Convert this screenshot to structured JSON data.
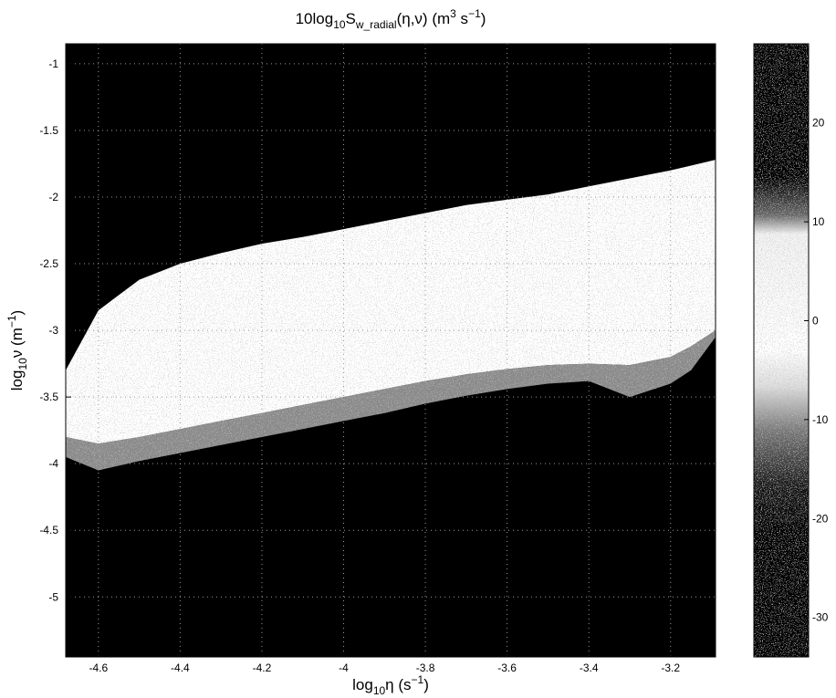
{
  "chart_data": {
    "type": "heatmap",
    "title": {
      "lead": "10log",
      "sub1": "10",
      "mid": "S",
      "sub2": "w_radial",
      "args": "(η,ν) (m",
      "sup1": "3",
      "mid2": " s",
      "sup2": "−1",
      "tail": ")"
    },
    "xlabel": {
      "lead": "log",
      "sub": "10",
      "mid": "η (s",
      "sup": "−1",
      "tail": ")"
    },
    "ylabel": {
      "lead": "log",
      "sub": "10",
      "mid": "ν (m",
      "sup": "−1",
      "tail": ")"
    },
    "xlim": [
      -4.68,
      -3.09
    ],
    "ylim": [
      -5.45,
      -0.85
    ],
    "x_ticks": [
      -4.6,
      -4.4,
      -4.2,
      -4,
      -3.8,
      -3.6,
      -3.4,
      -3.2
    ],
    "x_tick_labels": [
      "-4.6",
      "-4.4",
      "-4.2",
      "-4",
      "-3.8",
      "-3.6",
      "-3.4",
      "-3.2"
    ],
    "y_ticks": [
      -1,
      -1.5,
      -2,
      -2.5,
      -3,
      -3.5,
      -4,
      -4.5,
      -5
    ],
    "y_tick_labels": [
      "-1",
      "-1.5",
      "-2",
      "-2.5",
      "-3",
      "-3.5",
      "-4",
      "-4.5",
      "-5"
    ],
    "grid": true,
    "colorbar": {
      "ticks": [
        20,
        10,
        0,
        -10,
        -20,
        -30
      ],
      "tick_labels": [
        "20",
        "10",
        "0",
        "-10",
        "-20",
        "-30"
      ],
      "range": [
        -34,
        28
      ]
    },
    "high_band_upper_edge": {
      "x": [
        -4.68,
        -4.6,
        -4.5,
        -4.4,
        -4.3,
        -4.2,
        -4.1,
        -4.0,
        -3.9,
        -3.8,
        -3.7,
        -3.6,
        -3.5,
        -3.4,
        -3.3,
        -3.2,
        -3.09
      ],
      "y": [
        -3.3,
        -2.85,
        -2.62,
        -2.5,
        -2.42,
        -2.35,
        -2.3,
        -2.24,
        -2.18,
        -2.12,
        -2.06,
        -2.02,
        -1.98,
        -1.92,
        -1.86,
        -1.8,
        -1.72
      ]
    },
    "high_band_lower_edge": {
      "x": [
        -4.68,
        -4.6,
        -4.5,
        -4.4,
        -4.3,
        -4.2,
        -4.1,
        -4.0,
        -3.9,
        -3.8,
        -3.7,
        -3.6,
        -3.5,
        -3.4,
        -3.3,
        -3.2,
        -3.15,
        -3.09
      ],
      "y": [
        -3.8,
        -3.85,
        -3.8,
        -3.74,
        -3.68,
        -3.62,
        -3.56,
        -3.5,
        -3.44,
        -3.38,
        -3.33,
        -3.29,
        -3.26,
        -3.25,
        -3.26,
        -3.2,
        -3.12,
        -3.0
      ]
    },
    "low_band_upper_edge": {
      "x": [
        -4.68,
        -4.6,
        -4.5,
        -4.4,
        -4.3,
        -4.2,
        -4.1,
        -4.0,
        -3.9,
        -3.8,
        -3.7,
        -3.6,
        -3.5,
        -3.4,
        -3.3,
        -3.2,
        -3.15,
        -3.09
      ],
      "y": [
        -3.95,
        -4.05,
        -3.98,
        -3.92,
        -3.86,
        -3.8,
        -3.74,
        -3.68,
        -3.62,
        -3.55,
        -3.49,
        -3.44,
        -3.4,
        -3.38,
        -3.5,
        -3.4,
        -3.3,
        -3.05
      ]
    }
  }
}
